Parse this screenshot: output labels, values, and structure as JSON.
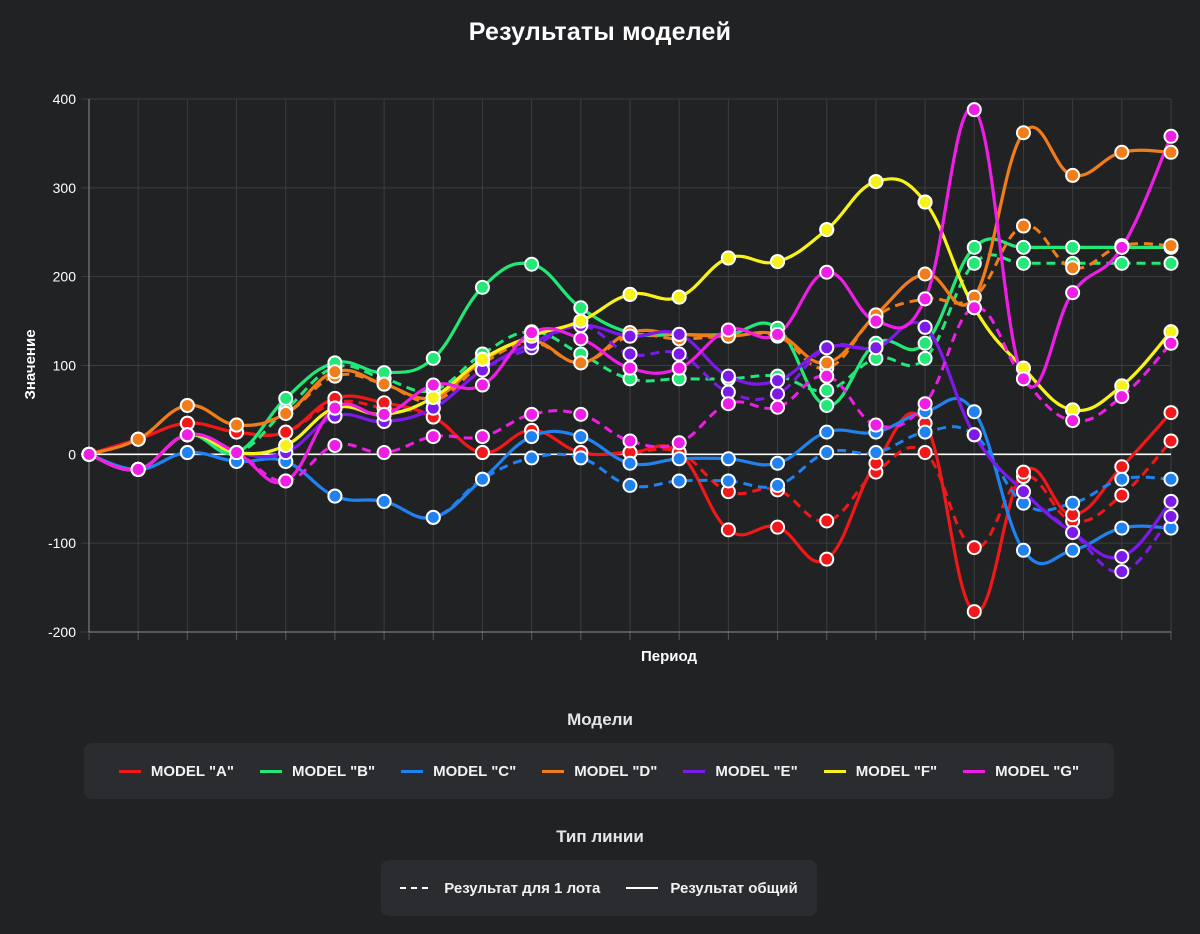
{
  "title": "Результаты моделей",
  "chart_data": {
    "type": "line",
    "xlabel": "Период",
    "ylabel": "Значение",
    "ylim": [
      -200,
      400
    ],
    "yticks": [
      -200,
      -100,
      0,
      100,
      200,
      300,
      400
    ],
    "n_points": 23,
    "series": [
      {
        "name": "MODEL \"A\"",
        "color": "#f01818",
        "total": [
          0,
          17,
          35,
          25,
          25,
          63,
          58,
          42,
          2,
          27,
          2,
          2,
          2,
          -85,
          -82,
          -118,
          -10,
          35,
          -177,
          -20,
          -68,
          -14,
          47
        ],
        "lot": [
          0,
          17,
          35,
          25,
          25,
          58,
          52,
          42,
          2,
          27,
          2,
          2,
          2,
          -42,
          -40,
          -75,
          -20,
          2,
          -105,
          -25,
          -75,
          -46,
          15
        ]
      },
      {
        "name": "MODEL \"B\"",
        "color": "#22e878",
        "total": [
          0,
          -17,
          22,
          2,
          63,
          103,
          92,
          108,
          188,
          214,
          165,
          137,
          135,
          135,
          142,
          55,
          125,
          125,
          233,
          233,
          233,
          233,
          233
        ],
        "lot": [
          0,
          -17,
          22,
          2,
          50,
          98,
          85,
          72,
          113,
          138,
          113,
          85,
          85,
          85,
          88,
          72,
          108,
          108,
          215,
          215,
          215,
          215,
          215
        ]
      },
      {
        "name": "MODEL \"C\"",
        "color": "#2082f0",
        "total": [
          0,
          -17,
          2,
          -8,
          -8,
          -47,
          -53,
          -71,
          -28,
          20,
          20,
          -10,
          -5,
          -5,
          -10,
          25,
          25,
          48,
          48,
          -108,
          -108,
          -83,
          -83
        ],
        "lot": [
          0,
          -17,
          2,
          -8,
          -8,
          -47,
          -53,
          -71,
          -28,
          -4,
          -4,
          -35,
          -30,
          -30,
          -35,
          2,
          2,
          25,
          22,
          -55,
          -55,
          -28,
          -28
        ]
      },
      {
        "name": "MODEL \"D\"",
        "color": "#f07c1a",
        "total": [
          0,
          17,
          55,
          33,
          46,
          93,
          79,
          64,
          105,
          128,
          103,
          137,
          135,
          133,
          135,
          103,
          157,
          203,
          177,
          362,
          314,
          340,
          340
        ],
        "lot": [
          0,
          17,
          55,
          33,
          46,
          88,
          79,
          60,
          102,
          126,
          103,
          133,
          130,
          133,
          133,
          97,
          155,
          175,
          177,
          257,
          210,
          235,
          235
        ]
      },
      {
        "name": "MODEL \"E\"",
        "color": "#7c1aea",
        "total": [
          0,
          -17,
          22,
          2,
          2,
          43,
          37,
          52,
          95,
          125,
          145,
          133,
          135,
          88,
          83,
          120,
          120,
          143,
          22,
          -42,
          -88,
          -115,
          -53
        ],
        "lot": [
          0,
          -17,
          22,
          2,
          2,
          43,
          37,
          52,
          95,
          120,
          145,
          113,
          113,
          70,
          68,
          120,
          120,
          143,
          22,
          -42,
          -88,
          -132,
          -70
        ]
      },
      {
        "name": "MODEL \"F\"",
        "color": "#f6f21a",
        "total": [
          0,
          -17,
          22,
          2,
          10,
          52,
          45,
          64,
          107,
          133,
          150,
          180,
          177,
          221,
          217,
          253,
          307,
          284,
          165,
          97,
          50,
          77,
          138
        ],
        "lot": [
          0,
          -17,
          22,
          2,
          10,
          52,
          45,
          64,
          107,
          133,
          150,
          180,
          177,
          221,
          217,
          253,
          307,
          284,
          165,
          97,
          50,
          77,
          138
        ]
      },
      {
        "name": "MODEL \"G\"",
        "color": "#ee1ee6",
        "total": [
          0,
          -17,
          22,
          2,
          -30,
          52,
          45,
          78,
          78,
          137,
          130,
          97,
          97,
          140,
          135,
          205,
          150,
          175,
          388,
          85,
          182,
          233,
          358
        ],
        "lot": [
          0,
          -17,
          22,
          2,
          -30,
          10,
          2,
          20,
          20,
          45,
          45,
          15,
          13,
          57,
          53,
          88,
          33,
          57,
          165,
          85,
          38,
          65,
          125
        ]
      }
    ]
  },
  "legend_models": {
    "title": "Модели",
    "items": [
      "MODEL \"A\"",
      "MODEL \"B\"",
      "MODEL \"C\"",
      "MODEL \"D\"",
      "MODEL \"E\"",
      "MODEL \"F\"",
      "MODEL \"G\""
    ],
    "colors": [
      "#f01818",
      "#22e878",
      "#2082f0",
      "#f07c1a",
      "#7c1aea",
      "#f6f21a",
      "#ee1ee6"
    ]
  },
  "legend_types": {
    "title": "Тип линии",
    "lot_label": "Результат для 1 лота",
    "total_label": "Результат общий"
  }
}
